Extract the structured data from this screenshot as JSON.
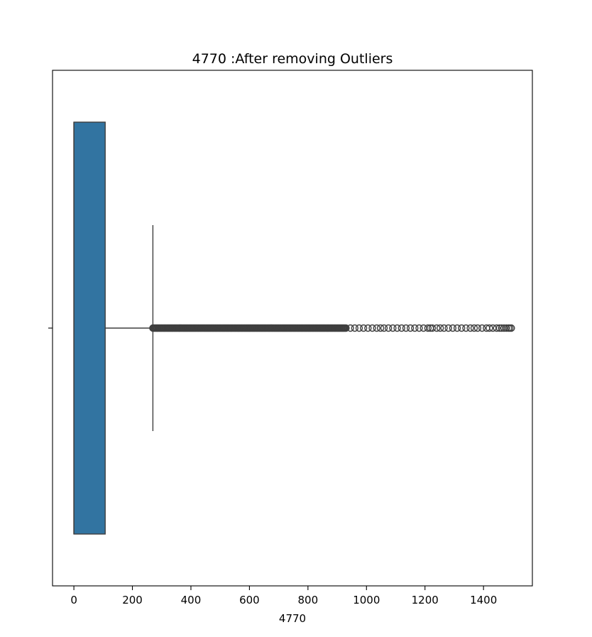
{
  "chart_data": {
    "type": "boxplot",
    "title": "4770 :After removing Outliers",
    "xlabel": "4770",
    "ylabel": "",
    "xlim": [
      -73,
      1567
    ],
    "xticks": [
      0,
      200,
      400,
      600,
      800,
      1000,
      1200,
      1400
    ],
    "xtick_labels": [
      "0",
      "200",
      "400",
      "600",
      "800",
      "1000",
      "1200",
      "1400"
    ],
    "grid": false,
    "box": {
      "q1": 0,
      "median": 0,
      "q3": 107,
      "whisker_low": 0,
      "whisker_high": 270
    },
    "outliers": {
      "dense_range": [
        270,
        930
      ],
      "points": [
        945,
        960,
        975,
        990,
        1005,
        1020,
        1035,
        1048,
        1060,
        1075,
        1090,
        1105,
        1120,
        1135,
        1150,
        1165,
        1180,
        1195,
        1210,
        1218,
        1225,
        1240,
        1252,
        1265,
        1280,
        1295,
        1310,
        1325,
        1340,
        1355,
        1368,
        1380,
        1395,
        1410,
        1420,
        1432,
        1445,
        1455,
        1462,
        1470,
        1478,
        1485,
        1490,
        1495
      ]
    },
    "colors": {
      "box_fill": "#3274a1",
      "line": "#3f3f3f",
      "frame": "#000000"
    }
  }
}
